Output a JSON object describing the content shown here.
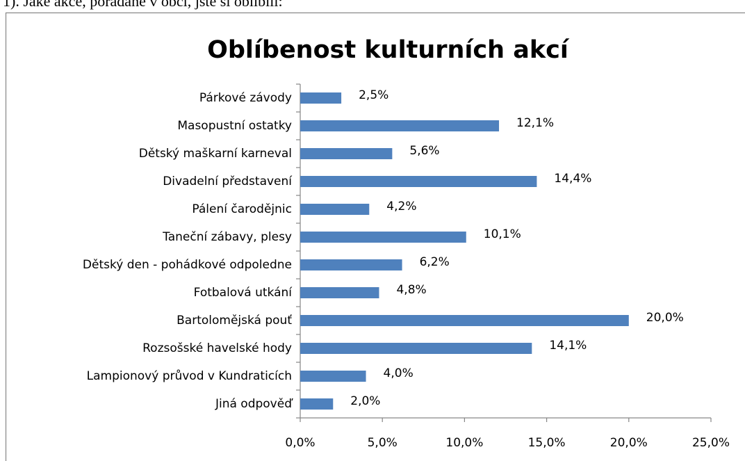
{
  "question": "1). Jaké akce, pořádané v obci, jste si oblíbili:",
  "chart_data": {
    "type": "hbar",
    "title": "Oblíbenost kulturních akcí",
    "categories": [
      "Párkové závody",
      "Masopustní ostatky",
      "Dětský maškarní karneval",
      "Divadelní představení",
      "Pálení čarodějnic",
      "Taneční zábavy, plesy",
      "Dětský den - pohádkové odpoledne",
      "Fotbalová utkání",
      "Bartolomějská pouť",
      "Rozsošské havelské hody",
      "Lampionový průvod v Kundraticích",
      "Jiná odpověď"
    ],
    "values": [
      2.5,
      12.1,
      5.6,
      14.4,
      4.2,
      10.1,
      6.2,
      4.8,
      20.0,
      14.1,
      4.0,
      2.0
    ],
    "value_labels": [
      "2,5%",
      "12,1%",
      "5,6%",
      "14,4%",
      "4,2%",
      "10,1%",
      "6,2%",
      "4,8%",
      "20,0%",
      "14,1%",
      "4,0%",
      "2,0%"
    ],
    "color": "#4f81bd",
    "xlim": [
      0,
      25
    ],
    "xticks": [
      {
        "value": 0,
        "label": "0,0%"
      },
      {
        "value": 5,
        "label": "5,0%"
      },
      {
        "value": 10,
        "label": "10,0%"
      },
      {
        "value": 15,
        "label": "15,0%"
      },
      {
        "value": 20,
        "label": "20,0%"
      },
      {
        "value": 25,
        "label": "25,0%"
      }
    ],
    "grid": false
  }
}
